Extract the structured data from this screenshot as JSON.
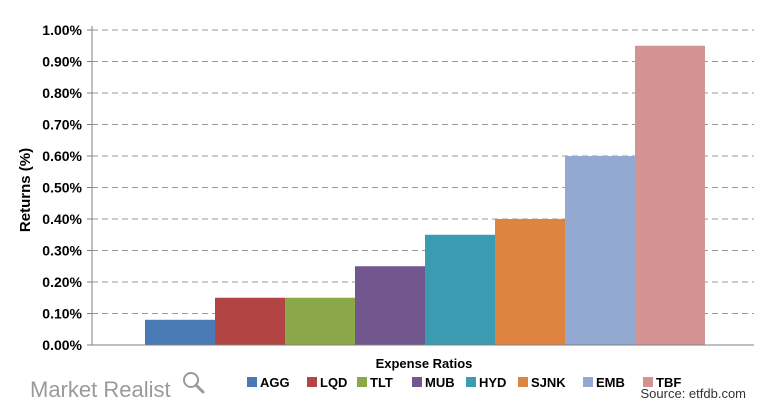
{
  "chart_data": {
    "type": "bar",
    "title": "",
    "xlabel": "Expense Ratios",
    "ylabel": "Returns (%)",
    "ylim": [
      0,
      1.0
    ],
    "yticks": [
      "0.00%",
      "0.10%",
      "0.20%",
      "0.30%",
      "0.40%",
      "0.50%",
      "0.60%",
      "0.70%",
      "0.80%",
      "0.90%",
      "1.00%"
    ],
    "grid": true,
    "legend_position": "bottom",
    "categories": [
      "AGG",
      "LQD",
      "TLT",
      "MUB",
      "HYD",
      "SJNK",
      "EMB",
      "TBF"
    ],
    "values": [
      0.08,
      0.15,
      0.15,
      0.25,
      0.35,
      0.4,
      0.6,
      0.95
    ],
    "colors": [
      "#4a7ab5",
      "#b24443",
      "#8aa84a",
      "#72578f",
      "#3b9bb1",
      "#de8440",
      "#93a9d2",
      "#d49393"
    ]
  },
  "branding": {
    "name": "Market Realist",
    "icon": "magnifier-icon"
  },
  "source": "Source: etfdb.com"
}
